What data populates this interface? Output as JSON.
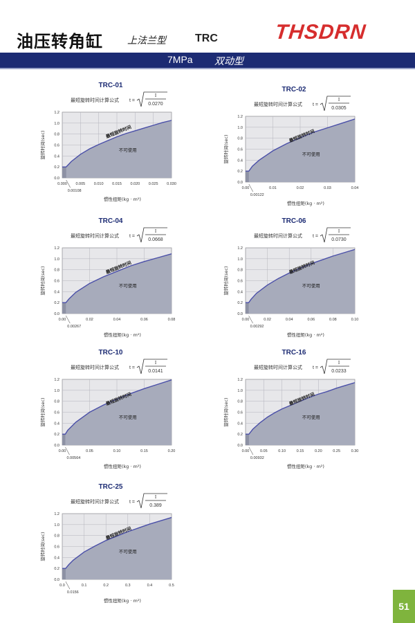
{
  "header": {
    "title": "油压转角缸",
    "subtitle": "上法兰型",
    "model": "TRC",
    "brand": "THSDRN"
  },
  "band": {
    "pressure": "7MPa",
    "type": "双动型"
  },
  "common": {
    "formula_label": "最短旋转时间计算公式",
    "formula_t": "t =",
    "formula_I": "I",
    "ylabel": "旋转时间(sec)",
    "xlabel": "惯性扭矩(kg · m²)",
    "curve_label": "最短旋转时间",
    "area_label": "不可使用",
    "colors": {
      "fill": "#a7abbb",
      "curve": "#4a4fa8",
      "bg": "#e7e7ea",
      "grid": "#b4b4bc",
      "axis": "#666666"
    }
  },
  "chart_data": [
    {
      "type": "area",
      "title": "TRC-01",
      "formula_divisor": "0.0270",
      "xlim": [
        0,
        0.03
      ],
      "ylim": [
        0,
        1.2
      ],
      "x_ticks": [
        "0.000",
        "0.005",
        "0.010",
        "0.015",
        "0.020",
        "0.025",
        "0.030"
      ],
      "y_ticks": [
        "0.0",
        "0.2",
        "0.4",
        "0.6",
        "0.8",
        "1.0",
        "1.2"
      ],
      "min_x": 0.00108,
      "min_x_label": "0.00108",
      "x": [
        0.00108,
        0.0025,
        0.005,
        0.0075,
        0.01,
        0.0125,
        0.015,
        0.0175,
        0.02,
        0.0225,
        0.025,
        0.0275,
        0.03
      ],
      "y": [
        0.2,
        0.3,
        0.43,
        0.53,
        0.61,
        0.68,
        0.75,
        0.81,
        0.86,
        0.91,
        0.96,
        1.01,
        1.05
      ]
    },
    {
      "type": "area",
      "title": "TRC-02",
      "formula_divisor": "0.0305",
      "xlim": [
        0,
        0.04
      ],
      "ylim": [
        0,
        1.2
      ],
      "x_ticks": [
        "0.00",
        "0.01",
        "0.02",
        "0.03",
        "0.04"
      ],
      "y_ticks": [
        "0.0",
        "0.2",
        "0.4",
        "0.6",
        "0.8",
        "1.0",
        "1.2"
      ],
      "min_x": 0.00122,
      "min_x_label": "0.00122",
      "x": [
        0.00122,
        0.0025,
        0.005,
        0.01,
        0.015,
        0.02,
        0.025,
        0.03,
        0.035,
        0.04
      ],
      "y": [
        0.2,
        0.29,
        0.4,
        0.57,
        0.7,
        0.81,
        0.91,
        0.99,
        1.07,
        1.15
      ]
    },
    {
      "type": "area",
      "title": "TRC-04",
      "formula_divisor": "0.0668",
      "xlim": [
        0,
        0.08
      ],
      "ylim": [
        0,
        1.2
      ],
      "x_ticks": [
        "0.00",
        "0.02",
        "0.04",
        "0.06",
        "0.08"
      ],
      "y_ticks": [
        "0.0",
        "0.2",
        "0.4",
        "0.6",
        "0.8",
        "1.0",
        "1.2"
      ],
      "min_x": 0.00267,
      "min_x_label": "0.00267",
      "x": [
        0.00267,
        0.005,
        0.01,
        0.02,
        0.03,
        0.04,
        0.05,
        0.06,
        0.07,
        0.08
      ],
      "y": [
        0.2,
        0.27,
        0.39,
        0.55,
        0.67,
        0.77,
        0.87,
        0.95,
        1.02,
        1.09
      ]
    },
    {
      "type": "area",
      "title": "TRC-06",
      "formula_divisor": "0.0730",
      "xlim": [
        0,
        0.1
      ],
      "ylim": [
        0,
        1.2
      ],
      "x_ticks": [
        "0.00",
        "0.02",
        "0.04",
        "0.06",
        "0.08",
        "0.10"
      ],
      "y_ticks": [
        "0.0",
        "0.2",
        "0.4",
        "0.6",
        "0.8",
        "1.0",
        "1.2"
      ],
      "min_x": 0.00292,
      "min_x_label": "0.00292",
      "x": [
        0.00292,
        0.005,
        0.01,
        0.02,
        0.03,
        0.04,
        0.05,
        0.06,
        0.07,
        0.08,
        0.09,
        0.1
      ],
      "y": [
        0.2,
        0.26,
        0.37,
        0.52,
        0.64,
        0.74,
        0.83,
        0.91,
        0.98,
        1.05,
        1.11,
        1.17
      ]
    },
    {
      "type": "area",
      "title": "TRC-10",
      "formula_divisor": "0.0141",
      "xlim": [
        0,
        0.2
      ],
      "ylim": [
        0,
        1.2
      ],
      "x_ticks": [
        "0.00",
        "0.05",
        "0.10",
        "0.15",
        "0.20"
      ],
      "y_ticks": [
        "0.0",
        "0.2",
        "0.4",
        "0.6",
        "0.8",
        "1.0",
        "1.2"
      ],
      "min_x": 0.00564,
      "min_x_label": "0.00564",
      "x": [
        0.00564,
        0.01,
        0.025,
        0.05,
        0.075,
        0.1,
        0.125,
        0.15,
        0.175,
        0.2
      ],
      "y": [
        0.2,
        0.27,
        0.42,
        0.6,
        0.73,
        0.84,
        0.94,
        1.03,
        1.11,
        1.19
      ]
    },
    {
      "type": "area",
      "title": "TRC-16",
      "formula_divisor": "0.0233",
      "xlim": [
        0,
        0.3
      ],
      "ylim": [
        0,
        1.2
      ],
      "x_ticks": [
        "0.00",
        "0.05",
        "0.10",
        "0.15",
        "0.20",
        "0.25",
        "0.30"
      ],
      "y_ticks": [
        "0.0",
        "0.2",
        "0.4",
        "0.6",
        "0.8",
        "1.0",
        "1.2"
      ],
      "min_x": 0.00932,
      "min_x_label": "0.00932",
      "x": [
        0.00932,
        0.02,
        0.04,
        0.06,
        0.08,
        0.1,
        0.125,
        0.15,
        0.175,
        0.2,
        0.225,
        0.25,
        0.275,
        0.3
      ],
      "y": [
        0.2,
        0.29,
        0.41,
        0.51,
        0.59,
        0.66,
        0.73,
        0.8,
        0.87,
        0.93,
        0.98,
        1.04,
        1.09,
        1.14
      ]
    },
    {
      "type": "area",
      "title": "TRC-25",
      "formula_divisor": "0.389",
      "xlim": [
        0,
        0.5
      ],
      "ylim": [
        0,
        1.2
      ],
      "x_ticks": [
        "0.0",
        "0.1",
        "0.2",
        "0.3",
        "0.4",
        "0.5"
      ],
      "y_ticks": [
        "0.0",
        "0.2",
        "0.4",
        "0.6",
        "0.8",
        "1.0",
        "1.2"
      ],
      "min_x": 0.0156,
      "min_x_label": "0.0156",
      "x": [
        0.0156,
        0.03,
        0.05,
        0.1,
        0.15,
        0.2,
        0.25,
        0.3,
        0.35,
        0.4,
        0.45,
        0.5
      ],
      "y": [
        0.2,
        0.27,
        0.35,
        0.5,
        0.61,
        0.71,
        0.79,
        0.87,
        0.94,
        1.01,
        1.07,
        1.13
      ]
    }
  ],
  "page_number": "51"
}
